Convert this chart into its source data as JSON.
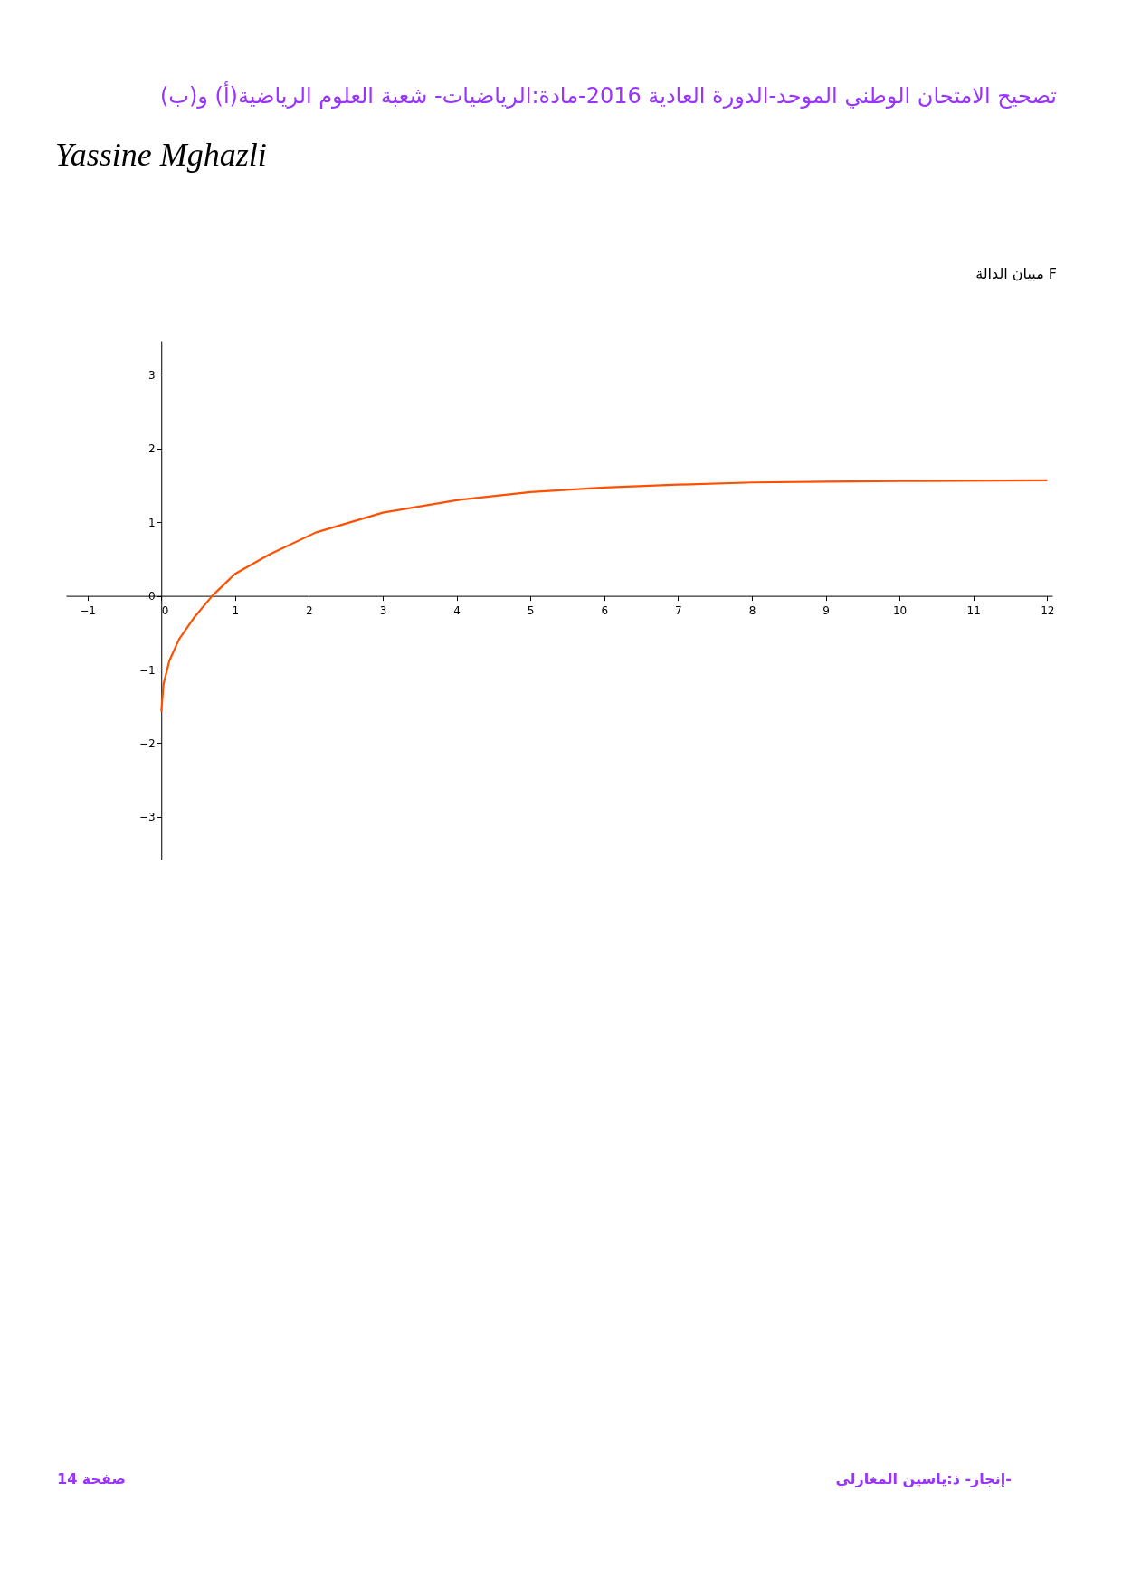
{
  "chart_data": {
    "type": "line",
    "title": "مبيان الدالة F",
    "series": [
      {
        "color": "#ff5000",
        "x": [
          0,
          0.03,
          0.11,
          0.24,
          0.44,
          0.69,
          1,
          1.46,
          2.09,
          3,
          4,
          5,
          6,
          7,
          8,
          9,
          10,
          12
        ],
        "values": [
          -1.57,
          -1.2,
          -0.88,
          -0.59,
          -0.3,
          0,
          0.3,
          0.56,
          0.86,
          1.13,
          1.3,
          1.41,
          1.47,
          1.51,
          1.54,
          1.55,
          1.56,
          1.57
        ]
      }
    ],
    "xlim": [
      -1.29,
      12.07
    ],
    "ylim": [
      -3.58,
      3.46
    ],
    "xticks": [
      -1,
      0,
      1,
      2,
      3,
      4,
      5,
      6,
      7,
      8,
      9,
      10,
      11,
      12
    ],
    "yticks": [
      -3,
      -2,
      -1,
      0,
      1,
      2,
      3
    ],
    "grid": false,
    "line_style": "solid",
    "annotations": [
      "تصحيح الامتحان الوطني الموحد-الدورة العادية 2016-مادة:الرياضيات- شعبة العلوم الرياضية(أ) و(ب)",
      "Yassine Mghazli",
      "صفحة 14",
      "إنجاز- ذ:ياسين المغازلي-"
    ]
  }
}
